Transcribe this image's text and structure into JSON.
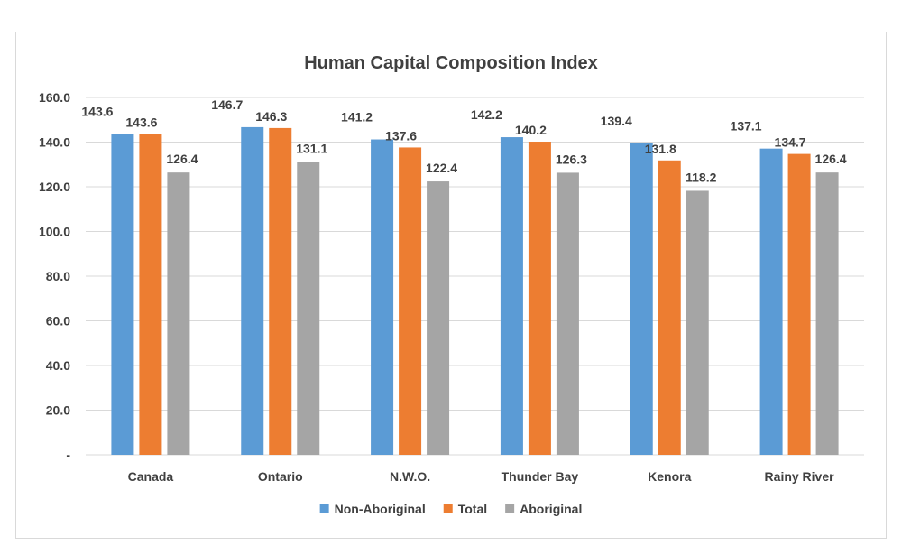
{
  "chart_data": {
    "type": "bar",
    "title": "Human Capital Composition Index",
    "categories": [
      "Canada",
      "Ontario",
      "N.W.O.",
      "Thunder Bay",
      "Kenora",
      "Rainy River"
    ],
    "series": [
      {
        "name": "Non-Aboriginal",
        "color": "#5b9bd5",
        "values": [
          143.6,
          146.7,
          141.2,
          142.2,
          139.4,
          137.1
        ]
      },
      {
        "name": "Total",
        "color": "#ed7d31",
        "values": [
          143.6,
          146.3,
          137.6,
          140.2,
          131.8,
          134.7
        ]
      },
      {
        "name": "Aboriginal",
        "color": "#a5a5a5",
        "values": [
          126.4,
          131.1,
          122.4,
          126.3,
          118.2,
          126.4
        ]
      }
    ],
    "yticks": [
      "-",
      "20.0",
      "40.0",
      "60.0",
      "80.0",
      "100.0",
      "120.0",
      "140.0",
      "160.0"
    ],
    "ylim": [
      0,
      160
    ],
    "grid": true,
    "legend": "bottom"
  }
}
